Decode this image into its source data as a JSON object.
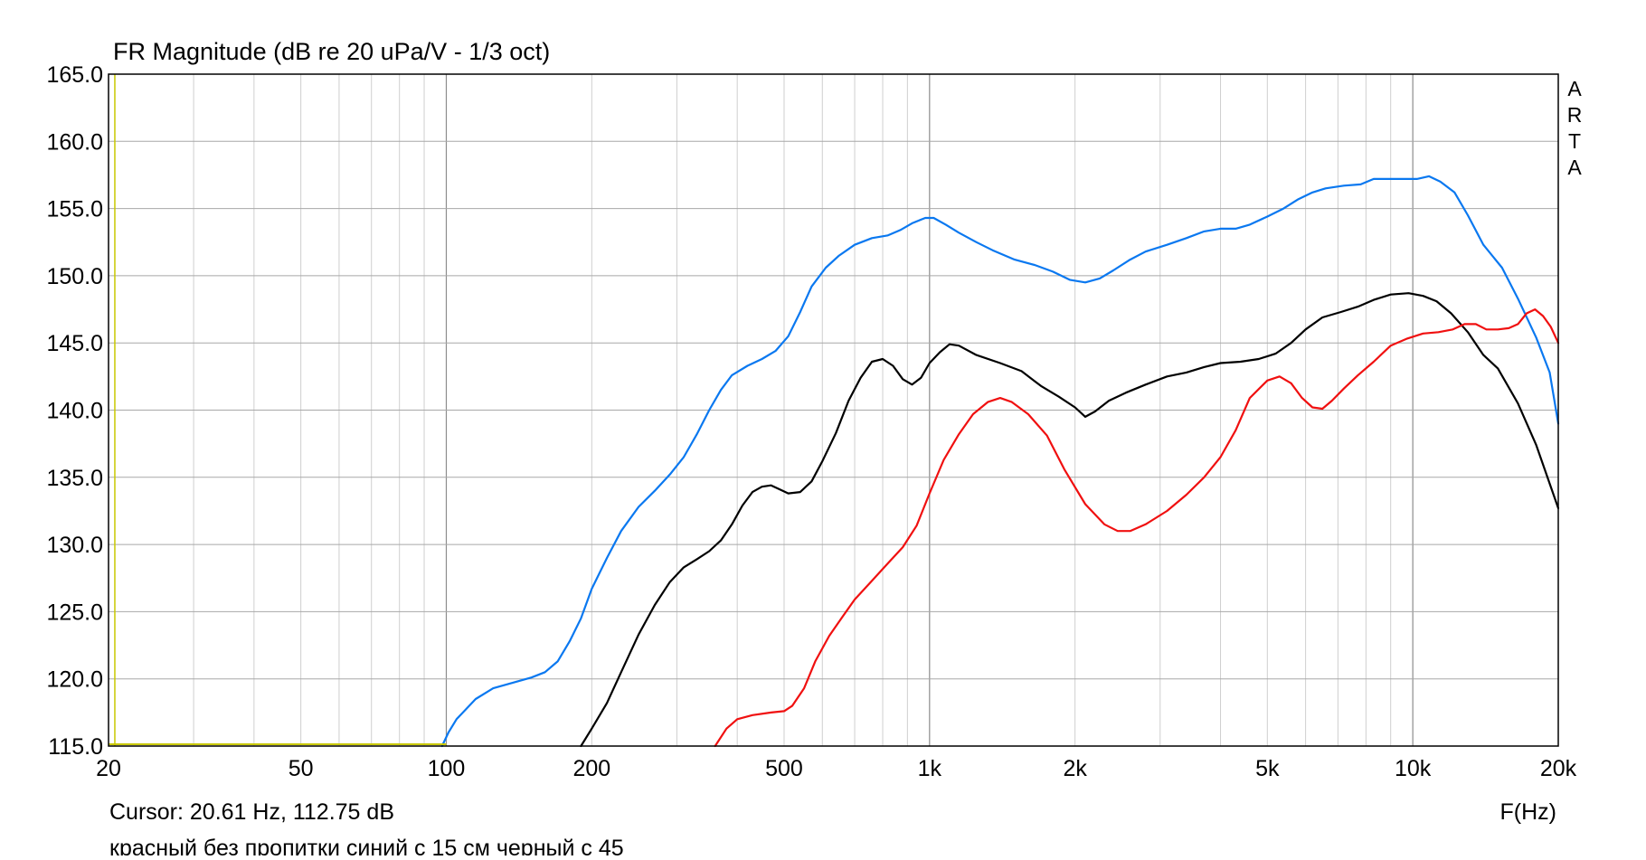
{
  "chart_data": {
    "type": "line",
    "title": "FR Magnitude (dB re 20 uPa/V - 1/3 oct)",
    "xlabel": "F(Hz)",
    "ylabel": "",
    "x_scale": "log",
    "xlim": [
      20,
      20000
    ],
    "ylim": [
      115,
      165
    ],
    "grid": true,
    "x_ticks": [
      {
        "value": 20,
        "label": "20"
      },
      {
        "value": 50,
        "label": "50"
      },
      {
        "value": 100,
        "label": "100"
      },
      {
        "value": 200,
        "label": "200"
      },
      {
        "value": 500,
        "label": "500"
      },
      {
        "value": 1000,
        "label": "1k"
      },
      {
        "value": 2000,
        "label": "2k"
      },
      {
        "value": 5000,
        "label": "5k"
      },
      {
        "value": 10000,
        "label": "10k"
      },
      {
        "value": 20000,
        "label": "20k"
      }
    ],
    "y_ticks": [
      "115.0",
      "120.0",
      "125.0",
      "130.0",
      "135.0",
      "140.0",
      "145.0",
      "150.0",
      "155.0",
      "160.0",
      "165.0"
    ],
    "brand": "ARTA",
    "cursor_readout": "Cursor: 20.61 Hz, 112.75 dB",
    "note": "красный без пропитки синий с 15 см черный с 45",
    "cursor": {
      "x": 20.61,
      "y": 112.75,
      "color": "#c8c800"
    },
    "series": [
      {
        "color": "#0a78f0",
        "points": [
          [
            98,
            115
          ],
          [
            101,
            116
          ],
          [
            105,
            117
          ],
          [
            115,
            118.5
          ],
          [
            125,
            119.3
          ],
          [
            140,
            119.8
          ],
          [
            150,
            120.1
          ],
          [
            160,
            120.5
          ],
          [
            170,
            121.3
          ],
          [
            180,
            122.8
          ],
          [
            190,
            124.5
          ],
          [
            200,
            126.7
          ],
          [
            215,
            129
          ],
          [
            230,
            131
          ],
          [
            250,
            132.8
          ],
          [
            270,
            134
          ],
          [
            290,
            135.2
          ],
          [
            310,
            136.5
          ],
          [
            330,
            138.2
          ],
          [
            350,
            140
          ],
          [
            370,
            141.5
          ],
          [
            390,
            142.6
          ],
          [
            420,
            143.3
          ],
          [
            450,
            143.8
          ],
          [
            480,
            144.4
          ],
          [
            510,
            145.5
          ],
          [
            540,
            147.3
          ],
          [
            570,
            149.2
          ],
          [
            610,
            150.6
          ],
          [
            650,
            151.5
          ],
          [
            700,
            152.3
          ],
          [
            760,
            152.8
          ],
          [
            820,
            153
          ],
          [
            870,
            153.4
          ],
          [
            920,
            153.9
          ],
          [
            980,
            154.3
          ],
          [
            1020,
            154.3
          ],
          [
            1080,
            153.8
          ],
          [
            1150,
            153.2
          ],
          [
            1250,
            152.5
          ],
          [
            1350,
            151.9
          ],
          [
            1500,
            151.2
          ],
          [
            1650,
            150.8
          ],
          [
            1800,
            150.3
          ],
          [
            1950,
            149.7
          ],
          [
            2100,
            149.5
          ],
          [
            2250,
            149.8
          ],
          [
            2400,
            150.4
          ],
          [
            2600,
            151.2
          ],
          [
            2800,
            151.8
          ],
          [
            3100,
            152.3
          ],
          [
            3400,
            152.8
          ],
          [
            3700,
            153.3
          ],
          [
            4000,
            153.5
          ],
          [
            4300,
            153.5
          ],
          [
            4600,
            153.8
          ],
          [
            5000,
            154.4
          ],
          [
            5400,
            155
          ],
          [
            5800,
            155.7
          ],
          [
            6200,
            156.2
          ],
          [
            6600,
            156.5
          ],
          [
            7200,
            156.7
          ],
          [
            7800,
            156.8
          ],
          [
            8300,
            157.2
          ],
          [
            8800,
            157.2
          ],
          [
            9500,
            157.2
          ],
          [
            10200,
            157.2
          ],
          [
            10800,
            157.4
          ],
          [
            11400,
            157.0
          ],
          [
            12200,
            156.2
          ],
          [
            13000,
            154.5
          ],
          [
            14000,
            152.3
          ],
          [
            15300,
            150.6
          ],
          [
            16500,
            148.3
          ],
          [
            18000,
            145.4
          ],
          [
            19200,
            142.8
          ],
          [
            20000,
            139.0
          ]
        ]
      },
      {
        "color": "#000000",
        "points": [
          [
            190,
            115
          ],
          [
            200,
            116.3
          ],
          [
            215,
            118.2
          ],
          [
            230,
            120.5
          ],
          [
            250,
            123.3
          ],
          [
            270,
            125.5
          ],
          [
            290,
            127.2
          ],
          [
            310,
            128.3
          ],
          [
            330,
            128.9
          ],
          [
            350,
            129.5
          ],
          [
            370,
            130.3
          ],
          [
            390,
            131.5
          ],
          [
            410,
            132.9
          ],
          [
            430,
            133.9
          ],
          [
            450,
            134.3
          ],
          [
            470,
            134.4
          ],
          [
            490,
            134.1
          ],
          [
            510,
            133.8
          ],
          [
            540,
            133.9
          ],
          [
            570,
            134.7
          ],
          [
            600,
            136.2
          ],
          [
            640,
            138.3
          ],
          [
            680,
            140.7
          ],
          [
            720,
            142.4
          ],
          [
            760,
            143.6
          ],
          [
            800,
            143.8
          ],
          [
            840,
            143.3
          ],
          [
            880,
            142.3
          ],
          [
            920,
            141.9
          ],
          [
            960,
            142.4
          ],
          [
            1000,
            143.5
          ],
          [
            1050,
            144.3
          ],
          [
            1100,
            144.9
          ],
          [
            1150,
            144.8
          ],
          [
            1250,
            144.1
          ],
          [
            1400,
            143.5
          ],
          [
            1550,
            142.9
          ],
          [
            1700,
            141.8
          ],
          [
            1850,
            141.0
          ],
          [
            2000,
            140.2
          ],
          [
            2100,
            139.5
          ],
          [
            2200,
            139.9
          ],
          [
            2350,
            140.7
          ],
          [
            2550,
            141.3
          ],
          [
            2800,
            141.9
          ],
          [
            3100,
            142.5
          ],
          [
            3400,
            142.8
          ],
          [
            3700,
            143.2
          ],
          [
            4000,
            143.5
          ],
          [
            4400,
            143.6
          ],
          [
            4800,
            143.8
          ],
          [
            5200,
            144.2
          ],
          [
            5600,
            145.0
          ],
          [
            6000,
            146.0
          ],
          [
            6500,
            146.9
          ],
          [
            7100,
            147.3
          ],
          [
            7700,
            147.7
          ],
          [
            8300,
            148.2
          ],
          [
            9000,
            148.6
          ],
          [
            9800,
            148.7
          ],
          [
            10500,
            148.5
          ],
          [
            11200,
            148.1
          ],
          [
            12000,
            147.2
          ],
          [
            13000,
            145.8
          ],
          [
            14000,
            144.1
          ],
          [
            15000,
            143.1
          ],
          [
            16500,
            140.5
          ],
          [
            18000,
            137.4
          ],
          [
            20000,
            132.7
          ]
        ]
      },
      {
        "color": "#f01010",
        "points": [
          [
            360,
            115
          ],
          [
            380,
            116.3
          ],
          [
            400,
            117.0
          ],
          [
            430,
            117.3
          ],
          [
            470,
            117.5
          ],
          [
            500,
            117.6
          ],
          [
            520,
            118.0
          ],
          [
            550,
            119.3
          ],
          [
            580,
            121.3
          ],
          [
            620,
            123.2
          ],
          [
            660,
            124.6
          ],
          [
            700,
            125.9
          ],
          [
            760,
            127.3
          ],
          [
            820,
            128.6
          ],
          [
            880,
            129.8
          ],
          [
            940,
            131.4
          ],
          [
            1000,
            133.8
          ],
          [
            1070,
            136.3
          ],
          [
            1150,
            138.2
          ],
          [
            1230,
            139.7
          ],
          [
            1320,
            140.6
          ],
          [
            1400,
            140.9
          ],
          [
            1480,
            140.6
          ],
          [
            1600,
            139.7
          ],
          [
            1750,
            138.1
          ],
          [
            1900,
            135.6
          ],
          [
            2100,
            133.0
          ],
          [
            2300,
            131.5
          ],
          [
            2450,
            131.0
          ],
          [
            2600,
            131.0
          ],
          [
            2800,
            131.5
          ],
          [
            3100,
            132.5
          ],
          [
            3400,
            133.7
          ],
          [
            3700,
            135.0
          ],
          [
            4000,
            136.5
          ],
          [
            4300,
            138.5
          ],
          [
            4600,
            140.9
          ],
          [
            5000,
            142.2
          ],
          [
            5300,
            142.5
          ],
          [
            5600,
            142.0
          ],
          [
            5900,
            140.9
          ],
          [
            6200,
            140.2
          ],
          [
            6500,
            140.1
          ],
          [
            6800,
            140.7
          ],
          [
            7200,
            141.6
          ],
          [
            7700,
            142.6
          ],
          [
            8300,
            143.6
          ],
          [
            9000,
            144.8
          ],
          [
            9700,
            145.3
          ],
          [
            10500,
            145.7
          ],
          [
            11300,
            145.8
          ],
          [
            12100,
            146.0
          ],
          [
            12800,
            146.4
          ],
          [
            13500,
            146.4
          ],
          [
            14200,
            146.0
          ],
          [
            15000,
            146.0
          ],
          [
            15800,
            146.1
          ],
          [
            16500,
            146.4
          ],
          [
            17200,
            147.2
          ],
          [
            17900,
            147.5
          ],
          [
            18600,
            147.0
          ],
          [
            19300,
            146.2
          ],
          [
            20000,
            145.0
          ]
        ]
      }
    ]
  }
}
